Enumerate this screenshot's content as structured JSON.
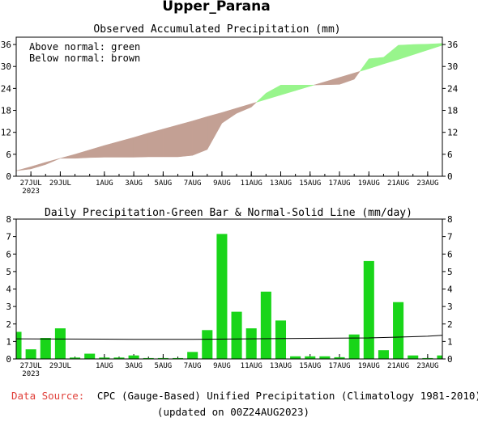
{
  "region_title": "Upper_Parana",
  "colors": {
    "above_normal": "#98f58c",
    "below_normal": "#c3a094",
    "bar": "#19d519",
    "source_label": "#e0403a"
  },
  "footer": {
    "source_label": "Data Source:",
    "source_text": "CPC (Gauge-Based) Unified Precipitation (Climatology 1981-2010)",
    "updated": "(updated on 00Z24AUG2023)"
  },
  "chart_data": [
    {
      "type": "area",
      "title": "Observed Accumulated Precipitation (mm)",
      "legend": [
        "Above normal: green",
        "Below normal: brown"
      ],
      "legend_position": "top-left",
      "x_tick_labels": [
        "27JUL",
        "29JUL",
        "1AUG",
        "3AUG",
        "5AUG",
        "7AUG",
        "9AUG",
        "11AUG",
        "13AUG",
        "15AUG",
        "17AUG",
        "19AUG",
        "21AUG",
        "23AUG"
      ],
      "x_tick_days": [
        1,
        3,
        6,
        8,
        10,
        12,
        14,
        16,
        18,
        20,
        22,
        24,
        26,
        28
      ],
      "year_label": "2023",
      "xlim": [
        0,
        29
      ],
      "ylim": [
        0,
        38
      ],
      "y_ticks": [
        0,
        6,
        12,
        18,
        24,
        30,
        36
      ],
      "series": [
        {
          "name": "Observed",
          "x": [
            0,
            1,
            2,
            3,
            4,
            5,
            6,
            7,
            8,
            9,
            10,
            11,
            12,
            13,
            14,
            15,
            16,
            17,
            18,
            19,
            20,
            21,
            22,
            23,
            24,
            25,
            26,
            27,
            28,
            29
          ],
          "values": [
            1.5,
            2.0,
            3.2,
            4.9,
            4.9,
            5.1,
            5.2,
            5.2,
            5.2,
            5.3,
            5.3,
            5.3,
            5.7,
            7.3,
            14.5,
            17.2,
            18.9,
            22.7,
            24.9,
            24.9,
            24.9,
            25.0,
            25.1,
            26.5,
            32.1,
            32.5,
            35.8,
            36.0,
            36.1,
            36.3
          ]
        },
        {
          "name": "Normal",
          "x": [
            0,
            1,
            2,
            3,
            4,
            5,
            6,
            7,
            8,
            9,
            10,
            11,
            12,
            13,
            14,
            15,
            16,
            17,
            18,
            19,
            20,
            21,
            22,
            23,
            24,
            25,
            26,
            27,
            28,
            29
          ],
          "values": [
            1.5,
            2.6,
            3.8,
            4.9,
            6.0,
            7.2,
            8.4,
            9.5,
            10.6,
            11.8,
            12.9,
            14.0,
            15.1,
            16.3,
            17.4,
            18.6,
            19.8,
            21.0,
            22.2,
            23.4,
            24.6,
            25.8,
            27.0,
            28.2,
            29.4,
            30.7,
            31.9,
            33.2,
            34.5,
            35.8
          ]
        }
      ]
    },
    {
      "type": "bar",
      "title": "Daily Precipitation-Green Bar & Normal-Solid Line (mm/day)",
      "x_tick_labels": [
        "27JUL",
        "29JUL",
        "1AUG",
        "3AUG",
        "5AUG",
        "7AUG",
        "9AUG",
        "11AUG",
        "13AUG",
        "15AUG",
        "17AUG",
        "19AUG",
        "21AUG",
        "23AUG"
      ],
      "x_tick_days": [
        1,
        3,
        6,
        8,
        10,
        12,
        14,
        16,
        18,
        20,
        22,
        24,
        26,
        28
      ],
      "year_label": "2023",
      "xlim": [
        0,
        29
      ],
      "ylim": [
        0,
        8
      ],
      "y_ticks": [
        0,
        1,
        2,
        3,
        4,
        5,
        6,
        7,
        8
      ],
      "series": [
        {
          "name": "Daily precipitation",
          "x": [
            0,
            1,
            2,
            3,
            4,
            5,
            6,
            7,
            8,
            9,
            10,
            11,
            12,
            13,
            14,
            15,
            16,
            17,
            18,
            19,
            20,
            21,
            22,
            23,
            24,
            25,
            26,
            27,
            28,
            29
          ],
          "values": [
            1.55,
            0.55,
            1.2,
            1.75,
            0.08,
            0.3,
            0.08,
            0.08,
            0.2,
            0.05,
            0.05,
            0.05,
            0.4,
            1.65,
            7.15,
            2.7,
            1.75,
            3.85,
            2.2,
            0.15,
            0.15,
            0.15,
            0.1,
            1.4,
            5.6,
            0.5,
            3.25,
            0.2,
            0.05,
            0.2
          ]
        },
        {
          "name": "Normal",
          "x": [
            0,
            4,
            8,
            12,
            16,
            20,
            24,
            28,
            29
          ],
          "values": [
            1.15,
            1.14,
            1.12,
            1.12,
            1.15,
            1.18,
            1.2,
            1.3,
            1.35
          ]
        }
      ]
    }
  ]
}
